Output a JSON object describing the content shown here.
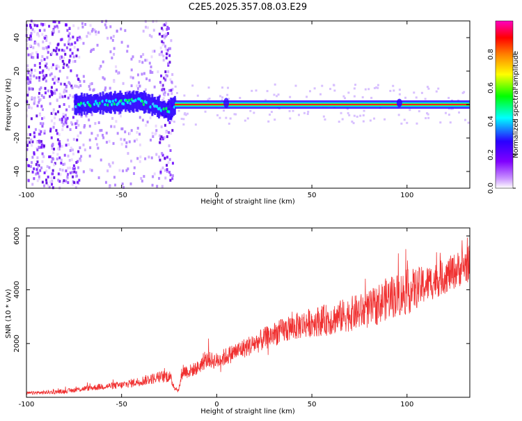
{
  "figure_title": "C2E5.2025.357.08.03.E29",
  "chart_data": [
    {
      "type": "heatmap",
      "title": "C2E5.2025.357.08.03.E29",
      "xlabel": "Height of straight line (km)",
      "ylabel": "Frequency (Hz)",
      "xlim": [
        -100,
        133
      ],
      "ylim": [
        -50,
        50
      ],
      "x_ticks": [
        "-100",
        "-50",
        "0",
        "50",
        "100"
      ],
      "x_tick_values": [
        -100,
        -50,
        0,
        50,
        100
      ],
      "y_ticks": [
        "-40",
        "-20",
        "0",
        "20",
        "40"
      ],
      "y_tick_values": [
        -40,
        -20,
        0,
        20,
        40
      ],
      "colorbar": {
        "label": "Normalized spectral amplitude",
        "range": [
          0,
          1
        ],
        "ticks": [
          "0.0",
          "0.2",
          "0.4",
          "0.6",
          "0.8"
        ],
        "tick_values": [
          0,
          0.2,
          0.4,
          0.6,
          0.8
        ],
        "colors": [
          "#ffffff",
          "#b000ff",
          "#2a00ff",
          "#00ffff",
          "#00ff00",
          "#ffff00",
          "#ff8000",
          "#ff0000",
          "#ff00c0"
        ]
      },
      "features": {
        "noise_region_x": [
          -100,
          -23
        ],
        "noise_band_x": [
          -28,
          -23
        ],
        "signal_start_x": -75,
        "line_frequency_hz": 0,
        "signal_bend_points": [
          [
            -75,
            0
          ],
          [
            -50,
            1.5
          ],
          [
            -40,
            2
          ],
          [
            -30,
            -2
          ],
          [
            -26,
            -4
          ],
          [
            -22,
            0
          ],
          [
            133,
            0
          ]
        ]
      }
    },
    {
      "type": "line",
      "xlabel": "Height of straight line (km)",
      "ylabel": "SNR (10 * v/v)",
      "xlim": [
        -100,
        133
      ],
      "ylim": [
        0,
        6300
      ],
      "x_ticks": [
        "-100",
        "-50",
        "0",
        "50",
        "100"
      ],
      "x_tick_values": [
        -100,
        -50,
        0,
        50,
        100
      ],
      "y_ticks": [
        "2000",
        "4000",
        "6000"
      ],
      "y_tick_values": [
        2000,
        4000,
        6000
      ],
      "series": [
        {
          "color": "#f03030",
          "x": [
            -100,
            -90,
            -80,
            -70,
            -60,
            -50,
            -40,
            -30,
            -25,
            -22,
            -20,
            -18,
            -15,
            -10,
            -5,
            0,
            10,
            20,
            30,
            40,
            50,
            60,
            70,
            80,
            90,
            100,
            110,
            120,
            133
          ],
          "y": [
            150,
            180,
            220,
            320,
            400,
            450,
            600,
            750,
            800,
            350,
            250,
            1000,
            950,
            1100,
            1400,
            1350,
            1700,
            2000,
            2350,
            2600,
            2800,
            2900,
            3100,
            3250,
            3700,
            3900,
            4200,
            4500,
            5000
          ],
          "noise_amplitude": [
            60,
            70,
            80,
            100,
            120,
            140,
            180,
            220,
            250,
            100,
            80,
            300,
            250,
            260,
            300,
            320,
            350,
            400,
            450,
            500,
            550,
            600,
            650,
            700,
            800,
            850,
            700,
            650,
            700
          ]
        }
      ]
    }
  ]
}
